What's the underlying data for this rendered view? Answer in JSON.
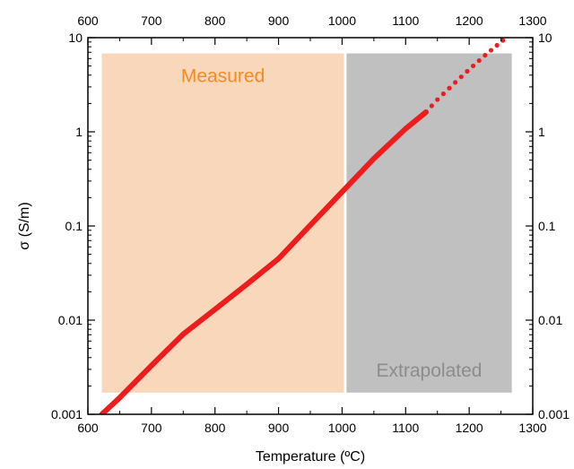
{
  "chart_data": {
    "type": "scatter",
    "xlabel": "Temperature (ºC)",
    "ylabel": "σ (S/m)",
    "xlim": [
      600,
      1300
    ],
    "ylim": [
      0.001,
      10
    ],
    "y_scale": "log",
    "top_axis_mirrors_bottom": true,
    "right_axis_mirrors_left": true,
    "grid": false,
    "x_ticks": [
      600,
      700,
      800,
      900,
      1000,
      1100,
      1200,
      1300
    ],
    "x_tick_labels": [
      "600",
      "700",
      "800",
      "900",
      "1000",
      "1100",
      "1200",
      "1300"
    ],
    "y_ticks": [
      0.001,
      0.01,
      0.1,
      1,
      10
    ],
    "y_tick_labels": [
      "0.001",
      "0.01",
      "0.1",
      "1",
      "10"
    ],
    "regions": [
      {
        "label": "Measured",
        "x_range": [
          622,
          1003
        ],
        "y_range": [
          0.0017,
          6.8
        ],
        "color": "#f9d7bb",
        "label_color": "#f58b21"
      },
      {
        "label": "Extrapolated",
        "x_range": [
          1007,
          1267
        ],
        "y_range": [
          0.0017,
          6.8
        ],
        "color": "#c0c0c0",
        "label_color": "#8c8c8c"
      }
    ],
    "series": [
      {
        "style": "solid",
        "color": "#ee1c1c",
        "x": [
          622,
          650,
          700,
          750,
          800,
          850,
          900,
          950,
          1000,
          1050,
          1100,
          1132
        ],
        "y": [
          0.001,
          0.0015,
          0.0033,
          0.0071,
          0.013,
          0.024,
          0.045,
          0.102,
          0.23,
          0.52,
          1.08,
          1.62
        ]
      },
      {
        "style": "dotted",
        "color": "#ee1c1c",
        "x": [
          1132,
          1150,
          1175,
          1200,
          1225,
          1250,
          1262
        ],
        "y": [
          1.62,
          2.2,
          3.2,
          4.6,
          6.5,
          9.0,
          10.5
        ]
      }
    ]
  }
}
